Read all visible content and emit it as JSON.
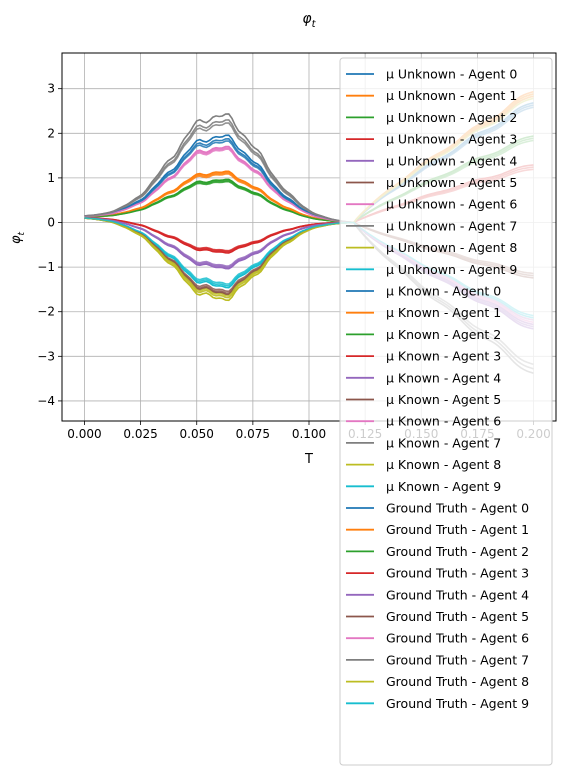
{
  "chart_data": {
    "type": "line",
    "title_main": "φ",
    "title_sub": "t",
    "xlabel": "T",
    "ylabel_main": "φ",
    "ylabel_sub": "t",
    "xlim": [
      -0.01,
      0.21
    ],
    "ylim": [
      -4.45,
      3.8
    ],
    "xticks": [
      0.0,
      0.025,
      0.05,
      0.075,
      0.1,
      0.125,
      0.15,
      0.175,
      0.2
    ],
    "xtick_labels": [
      "0.000",
      "0.025",
      "0.050",
      "0.075",
      "0.100",
      "0.125",
      "0.150",
      "0.175",
      "0.200"
    ],
    "yticks": [
      -4,
      -3,
      -2,
      -1,
      0,
      1,
      2,
      3
    ],
    "ytick_labels": [
      "−4",
      "−3",
      "−2",
      "−1",
      "0",
      "1",
      "2",
      "3"
    ],
    "grid": true,
    "legend_position": "upper-right",
    "shape_x": [
      0,
      0.005,
      0.01,
      0.015,
      0.02,
      0.025,
      0.03,
      0.035,
      0.04,
      0.045,
      0.05,
      0.055,
      0.06,
      0.065,
      0.07,
      0.075,
      0.08,
      0.085,
      0.09,
      0.095,
      0.1,
      0.105,
      0.11,
      0.115,
      0.12
    ],
    "series": [
      {
        "name": "μ Unknown - Agent 0",
        "color": "#1f77b4",
        "amp": 1.88,
        "end": 2.7
      },
      {
        "name": "μ Unknown - Agent 1",
        "color": "#ff7f0e",
        "amp": 1.08,
        "end": 2.95
      },
      {
        "name": "μ Unknown - Agent 2",
        "color": "#2ca02c",
        "amp": 0.9,
        "end": 1.95
      },
      {
        "name": "μ Unknown - Agent 3",
        "color": "#d62728",
        "amp": -0.73,
        "end": 1.3
      },
      {
        "name": "μ Unknown - Agent 4",
        "color": "#9467bd",
        "amp": -1.08,
        "end": -2.4
      },
      {
        "name": "μ Unknown - Agent 5",
        "color": "#8c564b",
        "amp": -1.65,
        "end": -1.25
      },
      {
        "name": "μ Unknown - Agent 6",
        "color": "#e377c2",
        "amp": 1.63,
        "end": -2.3
      },
      {
        "name": "μ Unknown - Agent 7",
        "color": "#7f7f7f",
        "amp": 2.35,
        "end": -3.4
      },
      {
        "name": "μ Unknown - Agent 8",
        "color": "#bcbd22",
        "amp": -1.78,
        "end": 2.9
      },
      {
        "name": "μ Unknown - Agent 9",
        "color": "#17becf",
        "amp": -1.5,
        "end": -2.2
      },
      {
        "name": "μ Known - Agent 0",
        "color": "#1f77b4",
        "amp": 1.8,
        "end": 2.65
      },
      {
        "name": "μ Known - Agent 1",
        "color": "#ff7f0e",
        "amp": 1.05,
        "end": 2.9
      },
      {
        "name": "μ Known - Agent 2",
        "color": "#2ca02c",
        "amp": 0.87,
        "end": 1.9
      },
      {
        "name": "μ Known - Agent 3",
        "color": "#d62728",
        "amp": -0.7,
        "end": 1.25
      },
      {
        "name": "μ Known - Agent 4",
        "color": "#9467bd",
        "amp": -1.05,
        "end": -2.35
      },
      {
        "name": "μ Known - Agent 5",
        "color": "#8c564b",
        "amp": -1.62,
        "end": -1.2
      },
      {
        "name": "μ Known - Agent 6",
        "color": "#e377c2",
        "amp": 1.6,
        "end": -2.25
      },
      {
        "name": "μ Known - Agent 7",
        "color": "#7f7f7f",
        "amp": 2.22,
        "end": -3.3
      },
      {
        "name": "μ Known - Agent 8",
        "color": "#bcbd22",
        "amp": -1.72,
        "end": 2.85
      },
      {
        "name": "μ Known - Agent 9",
        "color": "#17becf",
        "amp": -1.46,
        "end": -2.15
      },
      {
        "name": "Ground Truth - Agent 0",
        "color": "#1f77b4",
        "amp": 1.75,
        "end": 2.6
      },
      {
        "name": "Ground Truth - Agent 1",
        "color": "#ff7f0e",
        "amp": 1.02,
        "end": 2.85
      },
      {
        "name": "Ground Truth - Agent 2",
        "color": "#2ca02c",
        "amp": 0.85,
        "end": 1.85
      },
      {
        "name": "Ground Truth - Agent 3",
        "color": "#d62728",
        "amp": -0.68,
        "end": 1.2
      },
      {
        "name": "Ground Truth - Agent 4",
        "color": "#9467bd",
        "amp": -1.02,
        "end": -2.3
      },
      {
        "name": "Ground Truth - Agent 5",
        "color": "#8c564b",
        "amp": -1.58,
        "end": -1.15
      },
      {
        "name": "Ground Truth - Agent 6",
        "color": "#e377c2",
        "amp": 1.57,
        "end": -2.2
      },
      {
        "name": "Ground Truth - Agent 7",
        "color": "#7f7f7f",
        "amp": 2.15,
        "end": -3.2
      },
      {
        "name": "Ground Truth - Agent 8",
        "color": "#bcbd22",
        "amp": -1.68,
        "end": 2.8
      },
      {
        "name": "Ground Truth - Agent 9",
        "color": "#17becf",
        "amp": -1.42,
        "end": -2.1
      }
    ]
  }
}
